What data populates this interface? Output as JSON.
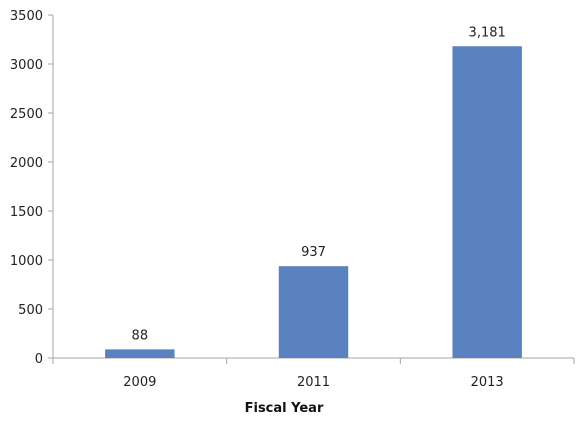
{
  "chart_data": {
    "type": "bar",
    "categories": [
      "2009",
      "2011",
      "2013"
    ],
    "values": [
      88,
      937,
      3181
    ],
    "data_labels": [
      "88",
      "937",
      "3,181"
    ],
    "xlabel": "Fiscal Year",
    "ylabel": "",
    "ylim": [
      0,
      3500
    ],
    "yticks": [
      "0",
      "500",
      "1000",
      "1500",
      "2000",
      "2500",
      "3000",
      "3500"
    ],
    "grid": false,
    "legend": "none",
    "bar_color": "#5b82c0"
  }
}
